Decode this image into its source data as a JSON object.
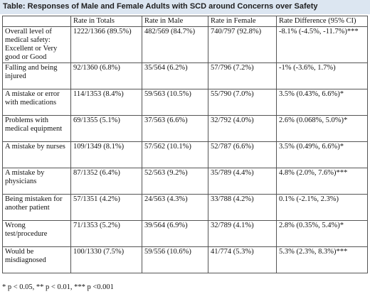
{
  "title": "Table: Responses of Male and Female Adults with SCD around Concerns over Safety",
  "headers": [
    "",
    "Rate in Totals",
    "Rate in Male",
    "Rate in Female",
    "Rate Difference (95% CI)"
  ],
  "rows": [
    {
      "label": "Overall level of medical safety: Excellent or Very good or Good",
      "totals": "1222/1366 (89.5%)",
      "male": "482/569 (84.7%)",
      "female": "740/797 (92.8%)",
      "diff": "-8.1% (-4.5%, -11.7%)***"
    },
    {
      "label": "Falling and being injured",
      "totals": "92/1360 (6.8%)",
      "male": "35/564 (6.2%)",
      "female": "57/796 (7.2%)",
      "diff": "-1% (-3.6%, 1.7%)"
    },
    {
      "label": "A mistake or error with medications",
      "totals": "114/1353 (8.4%)",
      "male": "59/563 (10.5%)",
      "female": "55/790 (7.0%)",
      "diff": "3.5% (0.43%, 6.6%)*"
    },
    {
      "label": "Problems with medical equipment",
      "totals": "69/1355 (5.1%)",
      "male": "37/563 (6.6%)",
      "female": "32/792 (4.0%)",
      "diff": "2.6% (0.068%, 5.0%)*"
    },
    {
      "label": "A mistake by nurses",
      "totals": "109/1349 (8.1%)",
      "male": "57/562 (10.1%)",
      "female": "52/787 (6.6%)",
      "diff": "3.5% (0.49%, 6.6%)*"
    },
    {
      "label": "A mistake by physicians",
      "totals": "87/1352 (6.4%)",
      "male": "52/563 (9.2%)",
      "female": "35/789 (4.4%)",
      "diff": "4.8% (2.0%, 7.6%)***"
    },
    {
      "label": "Being mistaken for another patient",
      "totals": "57/1351 (4.2%)",
      "male": "24/563 (4.3%)",
      "female": "33/788 (4.2%)",
      "diff": "0.1% (-2.1%, 2.3%)"
    },
    {
      "label": "Wrong test/procedure",
      "totals": "71/1353 (5.2%)",
      "male": "39/564 (6.9%)",
      "female": "32/789 (4.1%)",
      "diff": "2.8% (0.35%, 5.4%)*"
    },
    {
      "label": "Would be misdiagnosed",
      "totals": "100/1330 (7.5%)",
      "male": "59/556 (10.6%)",
      "female": "41/774 (5.3%)",
      "diff": "5.3% (2.3%, 8.3%)***"
    }
  ],
  "footnote": "* p < 0.05, ** p < 0.01, *** p <0.001"
}
